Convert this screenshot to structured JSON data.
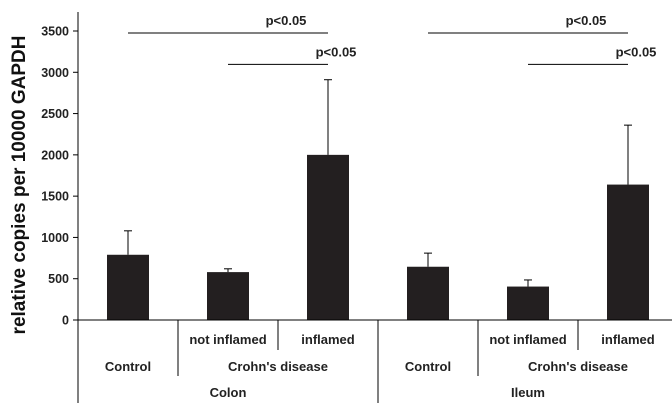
{
  "chart_data": {
    "type": "bar",
    "ylabel": "relative copies per 10000 GAPDH",
    "ylim": [
      0,
      3500
    ],
    "yticks": [
      0,
      500,
      1000,
      1500,
      2000,
      2500,
      3000,
      3500
    ],
    "bar_color": "#231f20",
    "bars": [
      {
        "tissue": "Colon",
        "group": "Control",
        "subgroup": "",
        "value": 790,
        "error": 290
      },
      {
        "tissue": "Colon",
        "group": "Crohn's disease",
        "subgroup": "not inflamed",
        "value": 580,
        "error": 40
      },
      {
        "tissue": "Colon",
        "group": "Crohn's disease",
        "subgroup": "inflamed",
        "value": 2000,
        "error": 910
      },
      {
        "tissue": "Ileum",
        "group": "Control",
        "subgroup": "",
        "value": 645,
        "error": 165
      },
      {
        "tissue": "Ileum",
        "group": "Crohn's disease",
        "subgroup": "not inflamed",
        "value": 405,
        "error": 80
      },
      {
        "tissue": "Ileum",
        "group": "Crohn's disease",
        "subgroup": "inflamed",
        "value": 1640,
        "error": 720
      }
    ],
    "labels": {
      "group_control": "Control",
      "group_crohns": "Crohn's disease",
      "sub_not_inflamed": "not inflamed",
      "sub_inflamed": "inflamed",
      "tissue_colon": "Colon",
      "tissue_ileum": "Ileum"
    },
    "significance": [
      {
        "from": 0,
        "to": 2,
        "label": "p<0.05",
        "level": 3500
      },
      {
        "from": 1,
        "to": 2,
        "label": "p<0.05",
        "level": 3120
      },
      {
        "from": 3,
        "to": 5,
        "label": "p<0.05",
        "level": 3500
      },
      {
        "from": 4,
        "to": 5,
        "label": "p<0.05",
        "level": 3120
      }
    ]
  }
}
